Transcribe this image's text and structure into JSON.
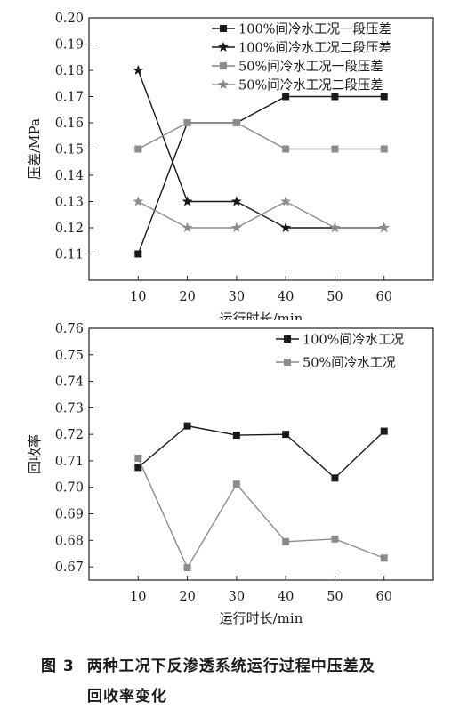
{
  "figure_label": "图 3",
  "caption_line1": "两种工况下反渗透系统运行过程中压差及",
  "caption_line2": "回收率变化",
  "chart_data": [
    {
      "type": "line",
      "xlabel": "运行时长/min",
      "ylabel": "压差/MPa",
      "x": [
        10,
        20,
        30,
        40,
        50,
        60
      ],
      "xlim": [
        0,
        70
      ],
      "ylim": [
        0.1,
        0.2
      ],
      "yticks": [
        "0.11",
        "0.12",
        "0.13",
        "0.14",
        "0.15",
        "0.16",
        "0.17",
        "0.18",
        "0.19",
        "0.20"
      ],
      "legend_position": "top-right",
      "series": [
        {
          "name": "100%间冷水工况一段压差",
          "values": [
            0.11,
            0.16,
            0.16,
            0.17,
            0.17,
            0.17
          ],
          "color": "#1a1a1a",
          "marker": "square"
        },
        {
          "name": "100%间冷水工况二段压差",
          "values": [
            0.18,
            0.13,
            0.13,
            0.12,
            0.12,
            0.12
          ],
          "color": "#1a1a1a",
          "marker": "star"
        },
        {
          "name": "50%间冷水工况一段压差",
          "values": [
            0.15,
            0.16,
            0.16,
            0.15,
            0.15,
            0.15
          ],
          "color": "#8c8c8c",
          "marker": "square"
        },
        {
          "name": "50%间冷水工况二段压差",
          "values": [
            0.13,
            0.12,
            0.12,
            0.13,
            0.12,
            0.12
          ],
          "color": "#8c8c8c",
          "marker": "star"
        }
      ]
    },
    {
      "type": "line",
      "xlabel": "运行时长/min",
      "ylabel": "回收率",
      "x": [
        10,
        20,
        30,
        40,
        50,
        60
      ],
      "xlim": [
        0,
        70
      ],
      "ylim": [
        0.665,
        0.76
      ],
      "yticks": [
        "0.67",
        "0.68",
        "0.69",
        "0.70",
        "0.71",
        "0.72",
        "0.73",
        "0.74",
        "0.75",
        "0.76"
      ],
      "legend_position": "top-right",
      "series": [
        {
          "name": "100%间冷水工况",
          "values": [
            0.7075,
            0.7232,
            0.7197,
            0.72,
            0.7035,
            0.7212
          ],
          "color": "#1a1a1a",
          "marker": "square"
        },
        {
          "name": "50%间冷水工况",
          "values": [
            0.711,
            0.6697,
            0.7012,
            0.6795,
            0.6805,
            0.6733
          ],
          "color": "#8c8c8c",
          "marker": "square"
        }
      ]
    }
  ]
}
